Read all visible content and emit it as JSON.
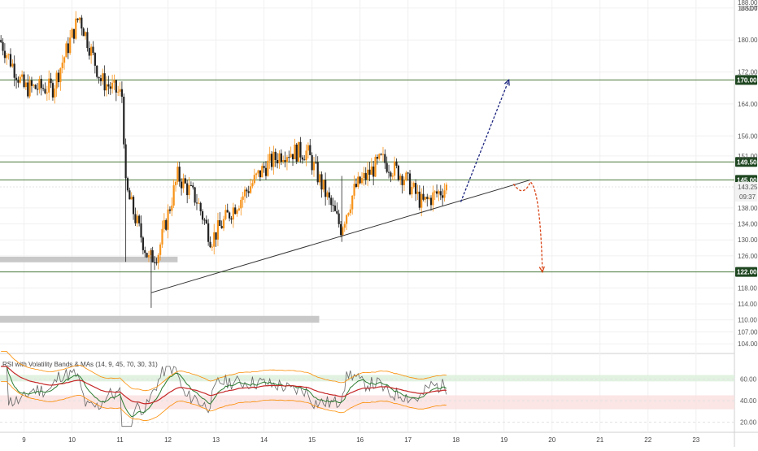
{
  "chart_data": {
    "type": "candlestick",
    "symbol_quote": "USDT",
    "price_axis": {
      "ticks": [
        188.0,
        180.0,
        172.0,
        164.0,
        156.0,
        151.0,
        138.0,
        134.0,
        130.0,
        126.0,
        118.0,
        114.0,
        110.0,
        107.0,
        104.0
      ],
      "top_label": "188.00",
      "range": [
        102,
        190
      ]
    },
    "x_axis": {
      "labels": [
        "9",
        "10",
        "11",
        "12",
        "13",
        "14",
        "15",
        "16",
        "17",
        "18",
        "19",
        "20",
        "21",
        "22",
        "23"
      ],
      "range": [
        8.5,
        23.8
      ]
    },
    "horizontal_levels": [
      {
        "price": 170.0,
        "label": "170.00",
        "color": "#2f6b2f"
      },
      {
        "price": 149.5,
        "label": "149.50",
        "color": "#2f6b2f"
      },
      {
        "price": 145.0,
        "label": "145.00",
        "color": "#2f6b2f"
      },
      {
        "price": 122.0,
        "label": "122.00",
        "color": "#2f6b2f"
      }
    ],
    "current_price": {
      "label": "143.25",
      "countdown": "09:37",
      "value": 143.25
    },
    "trendline": {
      "from": {
        "x": 11.65,
        "price": 116.8
      },
      "to": {
        "x": 19.55,
        "price": 145.0
      }
    },
    "projections": [
      {
        "name": "bullish",
        "color": "#1a237e",
        "points": [
          [
            18.1,
            139.5
          ],
          [
            19.1,
            170.0
          ]
        ]
      },
      {
        "name": "bearish",
        "color": "#d84315",
        "points": [
          [
            19.2,
            144.0
          ],
          [
            19.4,
            142.0
          ],
          [
            19.55,
            144.5
          ],
          [
            19.8,
            122.0
          ]
        ]
      }
    ],
    "gray_zones": [
      {
        "x_start": 8.5,
        "x_end": 12.2,
        "price_top": 125.8,
        "price_bottom": 124.4
      },
      {
        "x_start": 8.5,
        "x_end": 15.15,
        "price_top": 111.0,
        "price_bottom": 109.3
      }
    ],
    "rsi": {
      "title": "RSI with Volatility Bands & MAs (14, 9, 45, 70, 30, 31)",
      "ticks": [
        60.0,
        40.0,
        20.0
      ],
      "range": [
        12,
        78
      ],
      "upper_band_zone": [
        58,
        64
      ],
      "lower_band_zone": [
        32,
        45
      ]
    }
  },
  "colors": {
    "up_candle": "#f7931a",
    "down_candle": "#222222",
    "level_line": "#4a7a3a",
    "badge_bg": "#1e4620",
    "trendline": "#333333",
    "grid": "#f0f0f0"
  }
}
